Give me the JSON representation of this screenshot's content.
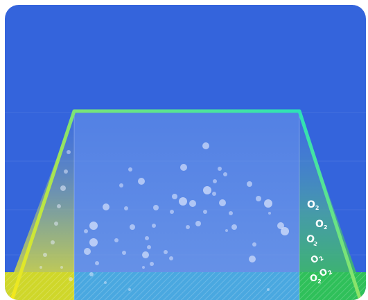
{
  "widget": {
    "type": "oxygen-saturation-visual",
    "background_color": "#3464dc",
    "gradient": {
      "start": "#f5e81a",
      "middle": "#46d28a",
      "end": "#17e2c8"
    },
    "fill_level": 0.18,
    "bubble_color": "#e8eeff",
    "right_zone_label": "O2",
    "o2_labels": [
      {
        "text": "O",
        "sub": "2"
      },
      {
        "text": "O",
        "sub": "2"
      },
      {
        "text": "O",
        "sub": "2"
      },
      {
        "text": "O",
        "sub": "2"
      },
      {
        "text": "O",
        "sub": "2"
      },
      {
        "text": "O",
        "sub": "2"
      }
    ]
  }
}
